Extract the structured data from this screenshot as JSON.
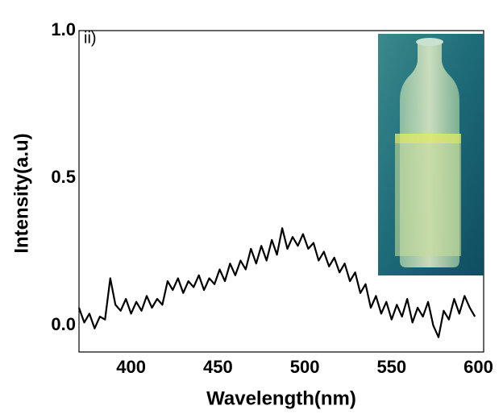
{
  "chart_data": {
    "type": "line",
    "annotation": "ii)",
    "x_label": "Wavelength(nm)",
    "y_label": "Intensity(a.u)",
    "xlim": [
      370,
      603
    ],
    "ylim": [
      -0.09,
      1.0
    ],
    "xticks": [
      400,
      450,
      500,
      550,
      600
    ],
    "yticks": [
      {
        "value": 0,
        "label": "0.0"
      },
      {
        "value": 0.5,
        "label": "0.5"
      },
      {
        "value": 1,
        "label": "1.0"
      }
    ],
    "grid": false,
    "x": [
      370,
      373,
      376,
      379,
      382,
      385,
      388,
      391,
      394,
      397,
      400,
      403,
      406,
      409,
      412,
      415,
      418,
      421,
      424,
      427,
      430,
      433,
      436,
      439,
      442,
      445,
      448,
      451,
      454,
      457,
      460,
      463,
      466,
      469,
      472,
      475,
      478,
      481,
      484,
      487,
      490,
      493,
      496,
      499,
      502,
      505,
      508,
      511,
      514,
      517,
      520,
      523,
      526,
      529,
      532,
      535,
      538,
      541,
      544,
      547,
      550,
      553,
      556,
      559,
      562,
      565,
      568,
      571,
      574,
      577,
      580,
      583,
      586,
      589,
      592,
      595,
      598
    ],
    "series": [
      {
        "color": "#000000",
        "values": [
          0.06,
          0.01,
          0.04,
          -0.01,
          0.03,
          0.02,
          0.16,
          0.07,
          0.05,
          0.09,
          0.04,
          0.08,
          0.05,
          0.1,
          0.06,
          0.09,
          0.07,
          0.15,
          0.12,
          0.16,
          0.11,
          0.15,
          0.13,
          0.17,
          0.12,
          0.16,
          0.14,
          0.19,
          0.15,
          0.21,
          0.17,
          0.22,
          0.19,
          0.26,
          0.21,
          0.27,
          0.22,
          0.29,
          0.24,
          0.33,
          0.26,
          0.3,
          0.27,
          0.31,
          0.26,
          0.28,
          0.22,
          0.25,
          0.2,
          0.23,
          0.18,
          0.21,
          0.15,
          0.18,
          0.11,
          0.14,
          0.06,
          0.1,
          0.04,
          0.08,
          0.02,
          0.07,
          0.03,
          0.09,
          0.01,
          0.06,
          0.03,
          0.08,
          0.0,
          -0.04,
          0.05,
          0.02,
          0.09,
          0.04,
          0.1,
          0.06,
          0.03
        ]
      }
    ]
  }
}
